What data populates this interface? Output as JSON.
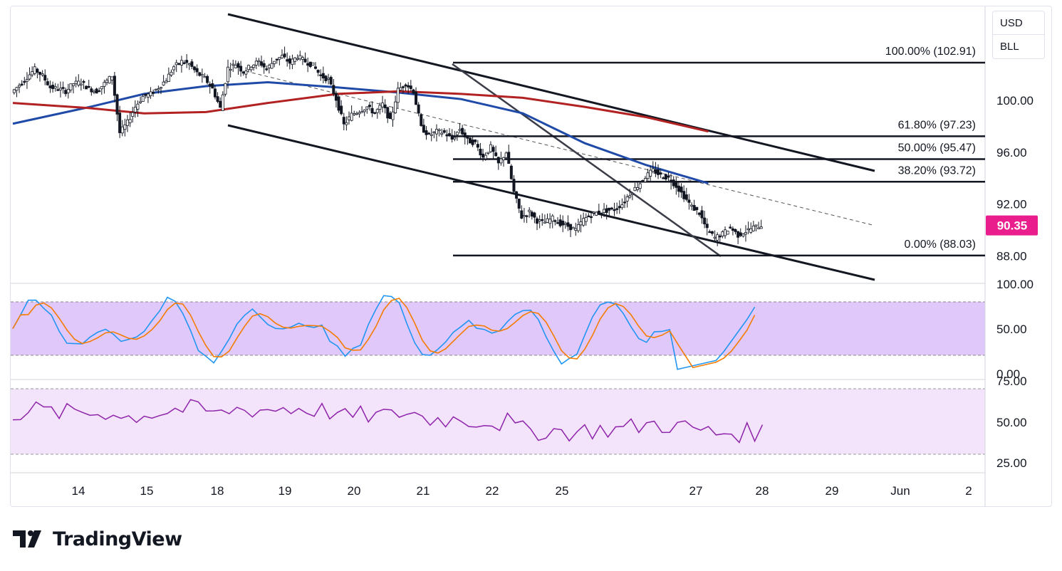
{
  "header": {
    "currency": "USD",
    "unit": "BLL"
  },
  "brand": {
    "name": "TradingView"
  },
  "colors": {
    "up_candle": "#131722",
    "down_candle": "#131722",
    "ma_blue": "#1f4aa8",
    "ma_red": "#b22222",
    "price_badge": "#e91e8c",
    "stoch_k": "#2196f3",
    "stoch_d": "#f57c00",
    "stoch_band": "#e1c8fa",
    "rsi_line": "#8e24aa",
    "rsi_band": "#f3e3fb"
  },
  "current_price": "90.35",
  "chart_data": {
    "type": "candlestick",
    "price_axis": {
      "ticks": [
        "100.00",
        "96.00",
        "92.00",
        "88.00"
      ],
      "ylim": [
        86.0,
        104.5
      ]
    },
    "time_axis": {
      "ticks": [
        "14",
        "15",
        "18",
        "19",
        "20",
        "21",
        "22",
        "25",
        "27",
        "28",
        "29",
        "Jun",
        "2"
      ]
    },
    "fibonacci": [
      {
        "label": "100.00% (102.91)",
        "value": 102.91
      },
      {
        "label": "61.80% (97.23)",
        "value": 97.23
      },
      {
        "label": "50.00% (95.47)",
        "value": 95.47
      },
      {
        "label": "38.20% (93.72)",
        "value": 93.72
      },
      {
        "label": "0.00% (88.03)",
        "value": 88.03
      }
    ],
    "close_path": [
      [
        0,
        100.6
      ],
      [
        1,
        101.2
      ],
      [
        2,
        101.8
      ],
      [
        3,
        102.4
      ],
      [
        4,
        101.9
      ],
      [
        5,
        101.0
      ],
      [
        6,
        100.9
      ],
      [
        7,
        100.7
      ],
      [
        8,
        101.3
      ],
      [
        9,
        101.4
      ],
      [
        10,
        100.9
      ],
      [
        11,
        100.7
      ],
      [
        12,
        101.3
      ],
      [
        13,
        101.9
      ],
      [
        14,
        97.5
      ],
      [
        15,
        98.3
      ],
      [
        16,
        99.5
      ],
      [
        17,
        100.3
      ],
      [
        18,
        100.5
      ],
      [
        19,
        101.0
      ],
      [
        20,
        101.6
      ],
      [
        21,
        102.6
      ],
      [
        22,
        103.0
      ],
      [
        23,
        102.8
      ],
      [
        24,
        102.1
      ],
      [
        25,
        101.7
      ],
      [
        26,
        100.9
      ],
      [
        27,
        99.4
      ],
      [
        28,
        102.5
      ],
      [
        29,
        102.8
      ],
      [
        30,
        102.2
      ],
      [
        31,
        102.7
      ],
      [
        32,
        103.0
      ],
      [
        33,
        102.4
      ],
      [
        34,
        103.1
      ],
      [
        35,
        103.4
      ],
      [
        36,
        102.9
      ],
      [
        37,
        103.4
      ],
      [
        38,
        103.0
      ],
      [
        39,
        102.7
      ],
      [
        40,
        101.9
      ],
      [
        41,
        101.6
      ],
      [
        42,
        100.1
      ],
      [
        43,
        98.1
      ],
      [
        44,
        98.9
      ],
      [
        45,
        99.2
      ],
      [
        46,
        99.5
      ],
      [
        47,
        99.0
      ],
      [
        48,
        99.7
      ],
      [
        49,
        98.4
      ],
      [
        50,
        100.8
      ],
      [
        51,
        101.3
      ],
      [
        52,
        100.7
      ],
      [
        53,
        97.9
      ],
      [
        54,
        97.3
      ],
      [
        55,
        97.6
      ],
      [
        56,
        97.5
      ],
      [
        57,
        97.0
      ],
      [
        58,
        97.8
      ],
      [
        59,
        96.9
      ],
      [
        60,
        96.7
      ],
      [
        61,
        95.6
      ],
      [
        62,
        96.4
      ],
      [
        63,
        95.1
      ],
      [
        64,
        96.0
      ],
      [
        65,
        92.9
      ],
      [
        66,
        91.0
      ],
      [
        67,
        91.4
      ],
      [
        68,
        90.7
      ],
      [
        69,
        90.6
      ],
      [
        70,
        90.9
      ],
      [
        71,
        90.5
      ],
      [
        72,
        90.3
      ],
      [
        73,
        90.0
      ],
      [
        74,
        90.8
      ],
      [
        75,
        91.2
      ],
      [
        76,
        91.4
      ],
      [
        77,
        91.5
      ],
      [
        78,
        91.6
      ],
      [
        79,
        92.0
      ],
      [
        80,
        92.8
      ],
      [
        81,
        93.4
      ],
      [
        82,
        94.1
      ],
      [
        83,
        94.6
      ],
      [
        84,
        94.2
      ],
      [
        85,
        94.0
      ],
      [
        86,
        93.4
      ],
      [
        87,
        92.6
      ],
      [
        88,
        91.8
      ],
      [
        89,
        91.3
      ],
      [
        90,
        90.0
      ],
      [
        91,
        89.4
      ],
      [
        92,
        89.7
      ],
      [
        93,
        90.2
      ],
      [
        94,
        89.6
      ],
      [
        95,
        89.9
      ],
      [
        96,
        90.2
      ],
      [
        97,
        90.35
      ]
    ],
    "moving_averages": [
      {
        "color": "#1f4aa8",
        "points": [
          [
            0,
            98.2
          ],
          [
            10,
            99.5
          ],
          [
            17,
            100.5
          ],
          [
            25,
            101.1
          ],
          [
            33,
            101.4
          ],
          [
            42,
            101.0
          ],
          [
            50,
            100.6
          ],
          [
            58,
            100.1
          ],
          [
            66,
            99.0
          ],
          [
            74,
            96.7
          ],
          [
            82,
            95.0
          ],
          [
            90,
            93.6
          ]
        ]
      },
      {
        "color": "#b22222",
        "points": [
          [
            0,
            99.8
          ],
          [
            10,
            99.4
          ],
          [
            17,
            99.0
          ],
          [
            25,
            99.1
          ],
          [
            33,
            99.8
          ],
          [
            42,
            100.5
          ],
          [
            50,
            100.7
          ],
          [
            58,
            100.5
          ],
          [
            66,
            100.2
          ],
          [
            74,
            99.5
          ],
          [
            82,
            98.7
          ],
          [
            90,
            97.6
          ]
        ]
      }
    ],
    "stochastic": {
      "ticks": [
        "100.00",
        "50.00",
        "0.00"
      ],
      "upper": 80,
      "lower": 20,
      "k_last": 75,
      "d_last": 66
    },
    "rsi": {
      "ticks": [
        "75.00",
        "50.00",
        "25.00"
      ],
      "upper": 70,
      "lower": 30,
      "last": 48
    }
  }
}
